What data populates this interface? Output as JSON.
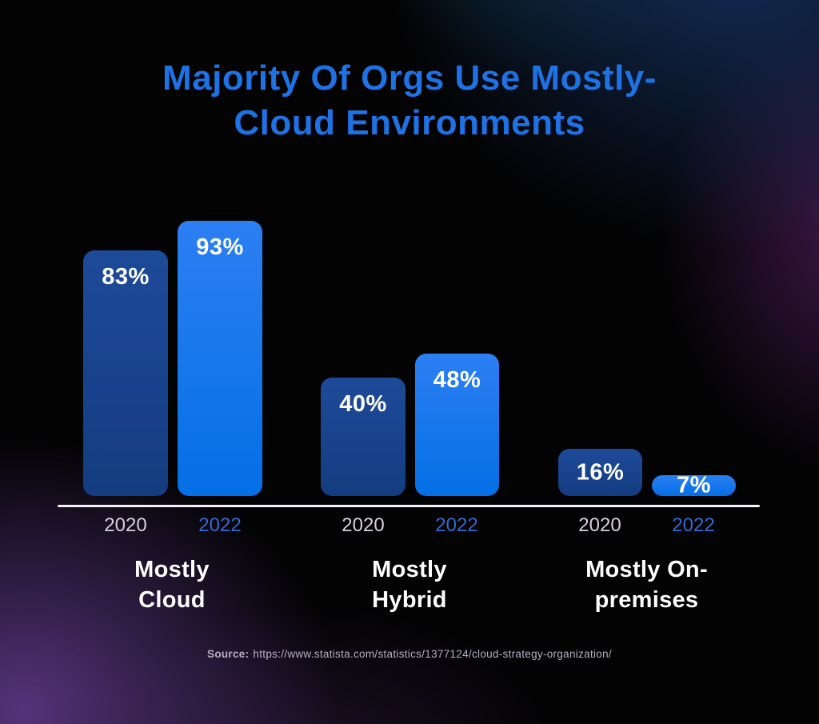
{
  "title": "Majority Of Orgs Use Mostly-Cloud Environments",
  "chart_data": {
    "type": "bar",
    "title": "Majority Of Orgs Use Mostly-Cloud Environments",
    "unit": "%",
    "ylim": [
      0,
      100
    ],
    "grid": false,
    "legend_position": "none",
    "series_years": [
      "2020",
      "2022"
    ],
    "categories": [
      "Mostly Cloud",
      "Mostly Hybrid",
      "Mostly On-premises"
    ],
    "series": [
      {
        "name": "2020",
        "values": [
          83,
          40,
          16
        ]
      },
      {
        "name": "2022",
        "values": [
          93,
          48,
          7
        ]
      }
    ],
    "groups": [
      {
        "label": "Mostly Cloud",
        "bars": [
          {
            "year": "2020",
            "value": 83,
            "label": "83%"
          },
          {
            "year": "2022",
            "value": 93,
            "label": "93%"
          }
        ]
      },
      {
        "label": "Mostly Hybrid",
        "bars": [
          {
            "year": "2020",
            "value": 40,
            "label": "40%"
          },
          {
            "year": "2022",
            "value": 48,
            "label": "48%"
          }
        ]
      },
      {
        "label": "Mostly On-premises",
        "bars": [
          {
            "year": "2020",
            "value": 16,
            "label": "16%"
          },
          {
            "year": "2022",
            "value": 7,
            "label": "7%"
          }
        ]
      }
    ]
  },
  "colors": {
    "title_blue": "#1e72e4",
    "bar_2020_dark_blue": "#16428f",
    "bar_2022_bright_blue": "#0b72ea",
    "year_2020_label": "#d6cfde",
    "year_2022_label": "#3568d2",
    "value_label": "#ffffff",
    "axis_line": "#f4f0f8",
    "source_text": "#b5aec0",
    "background_base": "#030304",
    "glow_purple": "#5a3a86",
    "glow_navy": "#163464"
  },
  "source": {
    "prefix": "Source:",
    "url": "https://www.statista.com/statistics/1377124/cloud-strategy-organization/"
  }
}
